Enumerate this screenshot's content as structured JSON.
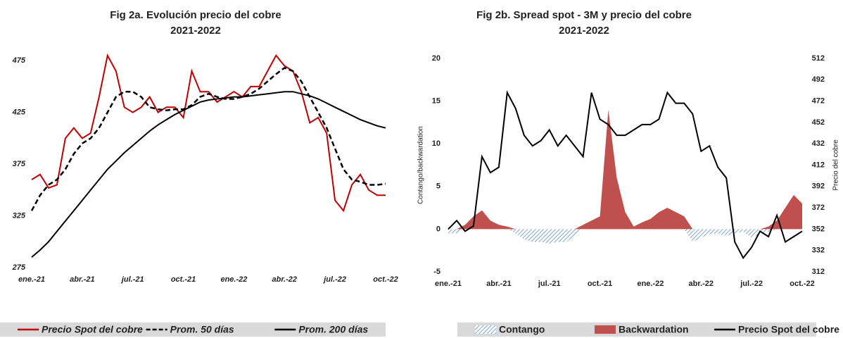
{
  "chart_data": [
    {
      "type": "line",
      "title": "Fig 2a. Evolución precio del cobre",
      "subtitle": "2021-2022",
      "categories": [
        "ene.-21",
        null,
        null,
        null,
        null,
        null,
        "abr.-21",
        null,
        null,
        null,
        null,
        null,
        "jul.-21",
        null,
        null,
        null,
        null,
        null,
        "oct.-21",
        null,
        null,
        null,
        null,
        null,
        "ene.-22",
        null,
        null,
        null,
        null,
        null,
        "abr.-22",
        null,
        null,
        null,
        null,
        null,
        "jul.-22",
        null,
        null,
        null,
        null,
        null,
        "oct.-22"
      ],
      "ylim": [
        275,
        486
      ],
      "yticks": [
        275,
        325,
        375,
        425,
        475
      ],
      "series": [
        {
          "name": "Precio Spot del cobre",
          "color": "#c00000",
          "dashed": false,
          "values": [
            360,
            365,
            352,
            355,
            400,
            410,
            400,
            405,
            440,
            480,
            465,
            430,
            425,
            430,
            440,
            425,
            430,
            430,
            420,
            465,
            445,
            445,
            435,
            440,
            445,
            440,
            450,
            450,
            465,
            480,
            470,
            465,
            445,
            415,
            420,
            405,
            340,
            330,
            355,
            365,
            350,
            345,
            345
          ]
        },
        {
          "name": "Prom. 50 días",
          "color": "#000000",
          "dashed": true,
          "values": [
            330,
            345,
            355,
            360,
            370,
            385,
            395,
            400,
            410,
            425,
            440,
            445,
            445,
            440,
            430,
            428,
            427,
            428,
            428,
            432,
            440,
            443,
            440,
            438,
            438,
            440,
            443,
            448,
            455,
            462,
            468,
            465,
            455,
            440,
            425,
            410,
            390,
            370,
            360,
            358,
            355,
            355,
            356
          ]
        },
        {
          "name": "Prom. 200 días",
          "color": "#000000",
          "dashed": false,
          "values": [
            285,
            292,
            300,
            310,
            320,
            330,
            340,
            350,
            360,
            370,
            378,
            386,
            393,
            400,
            407,
            413,
            418,
            423,
            427,
            431,
            435,
            437,
            438,
            439,
            440,
            440,
            441,
            442,
            443,
            444,
            445,
            445,
            443,
            441,
            438,
            434,
            430,
            426,
            422,
            418,
            415,
            412,
            410
          ]
        }
      ]
    },
    {
      "type": "line",
      "title": "Fig 2b. Spread spot - 3M y precio del cobre",
      "subtitle": "2021-2022",
      "ylabel": "Contango/backwardation",
      "y2label": "Precio del cobre",
      "categories": [
        "ene.-21",
        null,
        null,
        null,
        null,
        null,
        "abr.-21",
        null,
        null,
        null,
        null,
        null,
        "jul.-21",
        null,
        null,
        null,
        null,
        null,
        "oct.-21",
        null,
        null,
        null,
        null,
        null,
        "ene.-22",
        null,
        null,
        null,
        null,
        null,
        "abr.-22",
        null,
        null,
        null,
        null,
        null,
        "jul.-22",
        null,
        null,
        null,
        null,
        null,
        "oct.-22"
      ],
      "ylim": [
        -5,
        20
      ],
      "yticks": [
        -5,
        0,
        5,
        10,
        15,
        20
      ],
      "y2lim": [
        312,
        512
      ],
      "y2ticks": [
        312,
        332,
        352,
        372,
        392,
        412,
        432,
        452,
        472,
        492,
        512
      ],
      "series": [
        {
          "name": "Contango",
          "color": "#7fa7cc",
          "area": true,
          "hatch": true,
          "values": [
            -0.5,
            -0.5,
            0,
            0,
            0,
            0,
            0,
            0,
            -0.5,
            -1.2,
            -1.5,
            -1.5,
            -1.7,
            -1.5,
            -1.5,
            -0.8,
            0,
            0,
            0,
            0,
            0,
            0,
            0,
            0,
            0,
            0,
            0,
            0,
            0,
            -1.5,
            -1,
            -0.6,
            -0.5,
            -0.8,
            -0.5,
            -0.3,
            -1,
            -0.6,
            -0.3,
            0,
            0,
            0,
            0
          ]
        },
        {
          "name": "Backwardation",
          "color": "#c0504d",
          "area": true,
          "hatch": false,
          "values": [
            0,
            0,
            0.5,
            1.5,
            2.2,
            1,
            0.5,
            0.3,
            0,
            0,
            0,
            0,
            0,
            0,
            0,
            0,
            0.5,
            1,
            1.5,
            14,
            6,
            2,
            0.3,
            0.8,
            1.2,
            2,
            2.5,
            2,
            1.5,
            0,
            0,
            0,
            0,
            0,
            0,
            0,
            0,
            0,
            0.3,
            1,
            2.5,
            4,
            3
          ]
        },
        {
          "name": "Precio Spot del cobre",
          "color": "#000000",
          "axis": "y2",
          "values": [
            352,
            360,
            350,
            355,
            420,
            405,
            410,
            480,
            465,
            440,
            430,
            435,
            445,
            430,
            440,
            430,
            420,
            480,
            455,
            450,
            440,
            440,
            445,
            450,
            450,
            455,
            480,
            470,
            470,
            460,
            425,
            430,
            410,
            400,
            340,
            325,
            335,
            350,
            345,
            365,
            340,
            345,
            350
          ]
        }
      ]
    }
  ]
}
